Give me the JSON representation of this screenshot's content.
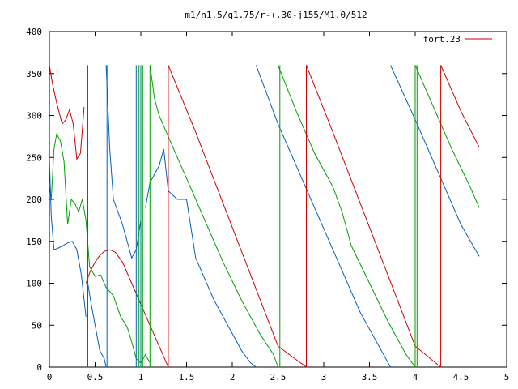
{
  "chart_data": {
    "type": "line",
    "title": "m1/n1.5/q1.75/r-+.30-j155/M1.0/512",
    "xlabel": "",
    "ylabel": "",
    "xlim": [
      0,
      5
    ],
    "ylim": [
      0,
      400
    ],
    "x_ticks": [
      "0",
      "0.5",
      "1",
      "1.5",
      "2",
      "2.5",
      "3",
      "3.5",
      "4",
      "4.5",
      "5"
    ],
    "y_ticks": [
      "0",
      "50",
      "100",
      "150",
      "200",
      "250",
      "300",
      "350",
      "400"
    ],
    "grid": false,
    "legend_position": "top-right",
    "legend": [
      {
        "label": "fort.23",
        "color": "#cc0000"
      }
    ],
    "series": [
      {
        "color": "#cc0000",
        "x": [
          0.0,
          0.03,
          0.08,
          0.14,
          0.18,
          0.22,
          0.26,
          0.3,
          0.34,
          0.38,
          null,
          0.4,
          0.45,
          0.5,
          0.55,
          0.6,
          0.66,
          0.72,
          0.8,
          0.9,
          1.0,
          1.1,
          1.2,
          1.3,
          null,
          1.3,
          1.6,
          1.9,
          2.2,
          2.5,
          2.81,
          null,
          2.81,
          3.1,
          3.4,
          3.7,
          4.0,
          4.28,
          null,
          4.28,
          4.5,
          4.7
        ],
        "y": [
          360,
          340,
          315,
          290,
          295,
          307,
          290,
          248,
          255,
          310,
          null,
          100,
          115,
          125,
          133,
          138,
          140,
          137,
          125,
          100,
          75,
          50,
          25,
          0,
          null,
          360,
          280,
          195,
          110,
          25,
          0,
          null,
          360,
          280,
          195,
          110,
          25,
          0,
          null,
          360,
          305,
          262
        ]
      },
      {
        "color": "#00a000",
        "x": [
          0.0,
          0.02,
          0.05,
          0.08,
          0.12,
          0.16,
          0.2,
          0.24,
          0.28,
          0.32,
          0.36,
          0.4,
          0.44,
          0.5,
          0.56,
          0.62,
          0.7,
          0.78,
          0.85,
          0.9,
          0.95,
          1.0,
          1.05,
          1.1,
          null,
          1.1,
          1.15,
          1.2,
          1.3,
          1.4,
          1.5,
          1.7,
          1.9,
          2.1,
          2.3,
          2.45,
          2.5,
          null,
          2.5,
          2.7,
          2.9,
          3.1,
          3.2,
          3.25,
          3.3,
          3.5,
          3.7,
          3.9,
          4.0,
          null,
          4.0,
          4.2,
          4.4,
          4.6,
          4.7
        ],
        "y": [
          220,
          200,
          260,
          278,
          270,
          245,
          170,
          200,
          195,
          185,
          200,
          175,
          120,
          108,
          110,
          95,
          85,
          60,
          48,
          30,
          10,
          5,
          15,
          5,
          null,
          360,
          320,
          300,
          275,
          250,
          225,
          175,
          125,
          80,
          40,
          15,
          0,
          null,
          360,
          305,
          255,
          215,
          185,
          165,
          145,
          100,
          55,
          15,
          0,
          null,
          360,
          310,
          260,
          215,
          190
        ]
      },
      {
        "color": "#0060c0",
        "x": [
          0.0,
          0.02,
          0.05,
          0.1,
          0.15,
          0.2,
          0.25,
          0.3,
          0.35,
          0.4,
          null,
          0.42,
          0.45,
          0.5,
          0.55,
          0.6,
          0.62,
          null,
          0.62,
          0.66,
          0.7,
          0.8,
          0.85,
          0.9,
          0.95,
          1.0,
          null,
          1.05,
          1.1,
          1.15,
          1.2,
          1.25,
          1.3,
          1.4,
          1.5,
          1.6,
          1.8,
          2.0,
          2.1,
          2.2,
          2.26,
          null,
          2.26,
          2.5,
          2.8,
          3.1,
          3.4,
          3.73,
          null,
          3.73,
          4.0,
          4.3,
          4.5,
          4.7
        ],
        "y": [
          250,
          180,
          140,
          142,
          145,
          148,
          150,
          140,
          110,
          60,
          null,
          100,
          80,
          50,
          20,
          10,
          0,
          null,
          360,
          260,
          200,
          170,
          150,
          130,
          140,
          175,
          null,
          190,
          220,
          230,
          240,
          260,
          210,
          200,
          200,
          130,
          80,
          40,
          20,
          5,
          0,
          null,
          360,
          290,
          215,
          140,
          65,
          0,
          null,
          360,
          295,
          220,
          170,
          132
        ]
      },
      {
        "color": "#0060c0",
        "x": [
          0.42,
          0.42,
          null,
          0.63,
          0.63,
          null,
          0.95,
          0.95,
          null,
          1.0,
          1.0
        ],
        "y": [
          0,
          360,
          null,
          0,
          360,
          null,
          0,
          360,
          null,
          360,
          0
        ]
      },
      {
        "color": "#00a000",
        "x": [
          0.98,
          0.98,
          null,
          1.02,
          1.02,
          null,
          1.1,
          1.1,
          null,
          2.5,
          2.5,
          null,
          2.52,
          2.52,
          null,
          4.0,
          4.0,
          null,
          4.02,
          4.02
        ],
        "y": [
          0,
          360,
          null,
          0,
          360,
          null,
          0,
          360,
          null,
          0,
          360,
          null,
          0,
          360,
          null,
          0,
          360,
          null,
          0,
          360
        ]
      },
      {
        "color": "#cc0000",
        "x": [
          1.3,
          1.3,
          null,
          2.81,
          2.81,
          null,
          4.28,
          4.28
        ],
        "y": [
          0,
          360,
          null,
          0,
          360,
          null,
          0,
          360
        ]
      }
    ]
  }
}
